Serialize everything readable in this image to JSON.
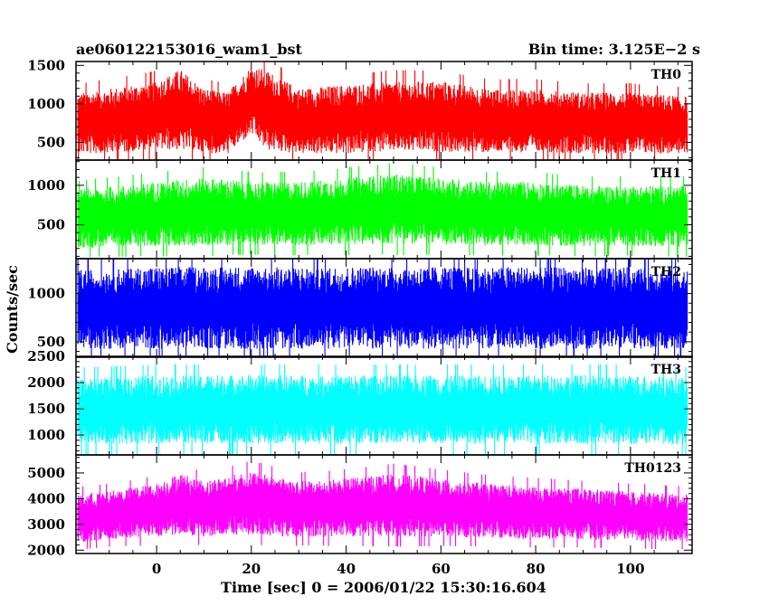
{
  "header": {
    "title": "ae060122153016_wam1_bst",
    "bin_time": "Bin time: 3.125E−2 s"
  },
  "chart_data": {
    "type": "line",
    "xlabel": "Time [sec] 0 = 2006/01/22 15:30:16.604",
    "ylabel": "Counts/sec",
    "xlim": [
      -17,
      113
    ],
    "x_ticks": [
      0,
      20,
      40,
      60,
      80,
      100
    ],
    "data_x_range": [
      -16.6,
      112
    ],
    "grid": false,
    "panels": [
      {
        "name": "TH0",
        "color": "#ff0000",
        "ylim": [
          270,
          1550
        ],
        "y_ticks": [
          500,
          1000,
          1500
        ],
        "envelope_x": [
          -16,
          -10,
          0,
          5,
          10,
          15,
          20,
          23,
          30,
          40,
          50,
          60,
          70,
          80,
          90,
          100,
          112
        ],
        "envelope_upper": [
          1150,
          1200,
          1300,
          1450,
          1200,
          1150,
          1500,
          1450,
          1200,
          1250,
          1300,
          1300,
          1200,
          1200,
          1150,
          1150,
          1100
        ],
        "envelope_lower": [
          350,
          350,
          400,
          400,
          350,
          350,
          600,
          400,
          350,
          350,
          380,
          370,
          360,
          360,
          350,
          350,
          350
        ]
      },
      {
        "name": "TH1",
        "color": "#00ff00",
        "ylim": [
          70,
          1320
        ],
        "y_ticks": [
          500,
          1000
        ],
        "envelope_x": [
          -16,
          0,
          10,
          20,
          30,
          40,
          50,
          60,
          70,
          80,
          90,
          100,
          112
        ],
        "envelope_upper": [
          950,
          1050,
          1100,
          1050,
          1050,
          1100,
          1150,
          1100,
          1050,
          1050,
          1000,
          1000,
          1000
        ],
        "envelope_lower": [
          200,
          220,
          230,
          240,
          230,
          240,
          250,
          240,
          230,
          230,
          220,
          220,
          210
        ]
      },
      {
        "name": "TH2",
        "color": "#0000ff",
        "ylim": [
          340,
          1360
        ],
        "y_ticks": [
          500,
          1000
        ],
        "envelope_x": [
          -16,
          0,
          20,
          40,
          60,
          80,
          100,
          112
        ],
        "envelope_upper": [
          1250,
          1280,
          1280,
          1280,
          1280,
          1280,
          1280,
          1250
        ],
        "envelope_lower": [
          420,
          420,
          420,
          420,
          420,
          420,
          420,
          420
        ]
      },
      {
        "name": "TH3",
        "color": "#00ffff",
        "ylim": [
          620,
          2500
        ],
        "y_ticks": [
          1000,
          1500,
          2000,
          2500
        ],
        "envelope_x": [
          -16,
          0,
          20,
          40,
          60,
          80,
          100,
          112
        ],
        "envelope_upper": [
          2100,
          2150,
          2150,
          2150,
          2150,
          2150,
          2150,
          2100
        ],
        "envelope_lower": [
          800,
          820,
          820,
          820,
          820,
          820,
          820,
          800
        ]
      },
      {
        "name": "TH0123",
        "color": "#ff00ff",
        "ylim": [
          1870,
          5700
        ],
        "y_ticks": [
          2000,
          3000,
          4000,
          5000
        ],
        "envelope_x": [
          -16,
          -10,
          0,
          5,
          10,
          20,
          25,
          30,
          40,
          50,
          60,
          70,
          80,
          90,
          100,
          112
        ],
        "envelope_upper": [
          4200,
          4300,
          4600,
          5000,
          4700,
          5100,
          4900,
          4700,
          4800,
          5000,
          4800,
          4600,
          4500,
          4400,
          4300,
          4200
        ],
        "envelope_lower": [
          2300,
          2400,
          2500,
          2600,
          2500,
          2600,
          2500,
          2500,
          2500,
          2500,
          2500,
          2450,
          2400,
          2400,
          2350,
          2300
        ]
      }
    ]
  }
}
